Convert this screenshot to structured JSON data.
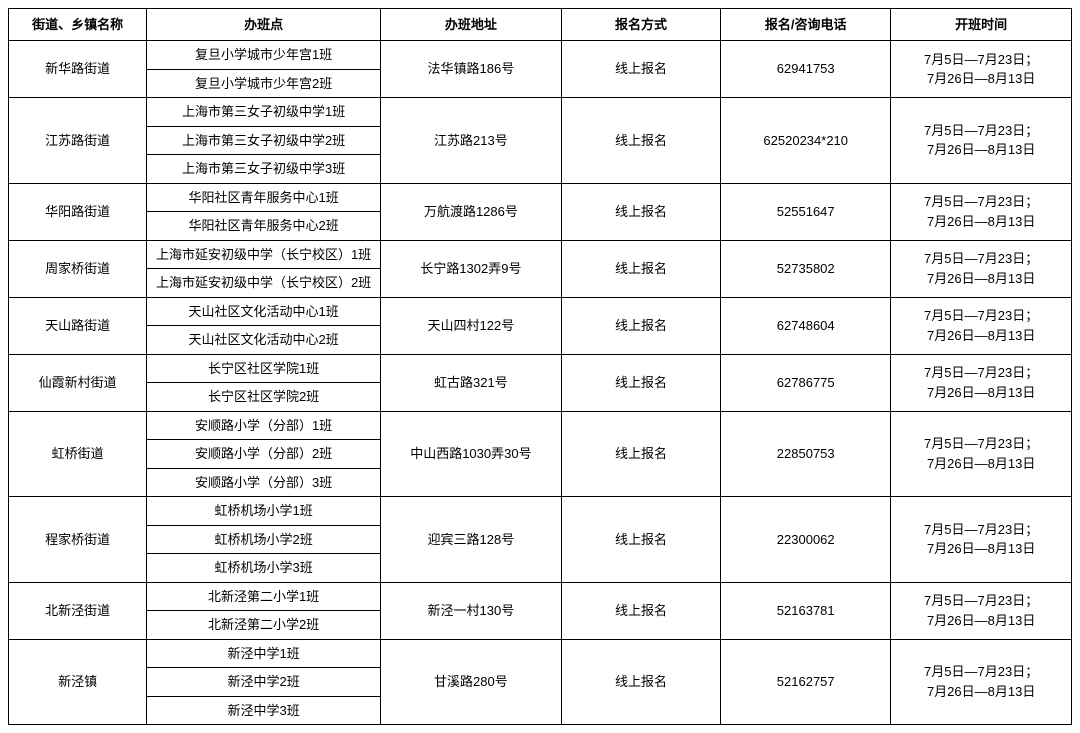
{
  "columns": {
    "street": "街道、乡镇名称",
    "class": "办班点",
    "address": "办班地址",
    "method": "报名方式",
    "phone": "报名/咨询电话",
    "time": "开班时间"
  },
  "schedule_line1": "7月5日—7月23日；",
  "schedule_line2": "7月26日—8月13日",
  "streets": [
    {
      "name": "新华路街道",
      "address": "法华镇路186号",
      "method": "线上报名",
      "phone": "62941753",
      "classes": [
        "复旦小学城市少年宫1班",
        "复旦小学城市少年宫2班"
      ]
    },
    {
      "name": "江苏路街道",
      "address": "江苏路213号",
      "method": "线上报名",
      "phone": "62520234*210",
      "classes": [
        "上海市第三女子初级中学1班",
        "上海市第三女子初级中学2班",
        "上海市第三女子初级中学3班"
      ]
    },
    {
      "name": "华阳路街道",
      "address": "万航渡路1286号",
      "method": "线上报名",
      "phone": "52551647",
      "classes": [
        "华阳社区青年服务中心1班",
        "华阳社区青年服务中心2班"
      ]
    },
    {
      "name": "周家桥街道",
      "address": "长宁路1302弄9号",
      "method": "线上报名",
      "phone": "52735802",
      "classes": [
        "上海市延安初级中学（长宁校区）1班",
        "上海市延安初级中学（长宁校区）2班"
      ]
    },
    {
      "name": "天山路街道",
      "address": "天山四村122号",
      "method": "线上报名",
      "phone": "62748604",
      "classes": [
        "天山社区文化活动中心1班",
        "天山社区文化活动中心2班"
      ]
    },
    {
      "name": "仙霞新村街道",
      "address": "虹古路321号",
      "method": "线上报名",
      "phone": "62786775",
      "classes": [
        "长宁区社区学院1班",
        "长宁区社区学院2班"
      ]
    },
    {
      "name": "虹桥街道",
      "address": "中山西路1030弄30号",
      "method": "线上报名",
      "phone": "22850753",
      "classes": [
        "安顺路小学（分部）1班",
        "安顺路小学（分部）2班",
        "安顺路小学（分部）3班"
      ]
    },
    {
      "name": "程家桥街道",
      "address": "迎宾三路128号",
      "method": "线上报名",
      "phone": "22300062",
      "classes": [
        "虹桥机场小学1班",
        "虹桥机场小学2班",
        "虹桥机场小学3班"
      ]
    },
    {
      "name": "北新泾街道",
      "address": "新泾一村130号",
      "method": "线上报名",
      "phone": "52163781",
      "classes": [
        "北新泾第二小学1班",
        "北新泾第二小学2班"
      ]
    },
    {
      "name": "新泾镇",
      "address": "甘溪路280号",
      "method": "线上报名",
      "phone": "52162757",
      "classes": [
        "新泾中学1班",
        "新泾中学2班",
        "新泾中学3班"
      ]
    }
  ]
}
